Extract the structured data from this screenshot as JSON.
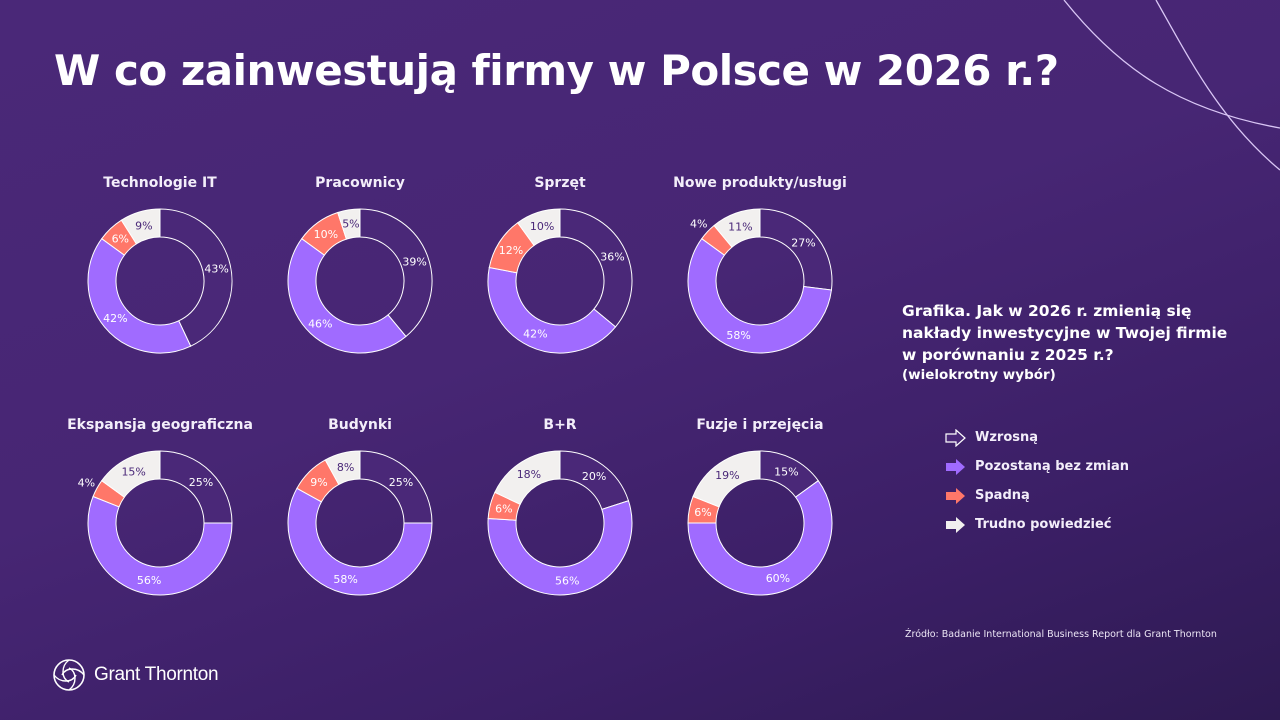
{
  "title": "W co zainwestują firmy w Polsce w 2026 r.?",
  "colors": {
    "background": "#472674",
    "wzrosna": "#4a2878",
    "pozostana": "#a06bff",
    "spadna": "#ff7769",
    "trudno": "#f2f0ef",
    "outline": "#ffffff"
  },
  "legend": {
    "items": [
      {
        "label": "Wzrosną",
        "color": "#4a2878",
        "icon": "arrow-outline-icon"
      },
      {
        "label": "Pozostaną bez zmian",
        "color": "#a06bff",
        "icon": "arrow-icon"
      },
      {
        "label": "Spadną",
        "color": "#ff7769",
        "icon": "arrow-icon"
      },
      {
        "label": "Trudno powiedzieć",
        "color": "#f2f0ef",
        "icon": "arrow-icon"
      }
    ]
  },
  "question": {
    "text": "Grafika. Jak w 2026 r. zmienią się nakłady inwestycyjne w Twojej firmie w porównaniu z 2025 r.?",
    "note": "(wielokrotny wybór)"
  },
  "source": "Źródło: Badanie International Business Report dla Grant Thornton",
  "logo": {
    "text": "Grant Thornton"
  },
  "chart_data": {
    "type": "pie",
    "subtype": "donut",
    "title": "W co zainwestują firmy w Polsce w 2026 r.?",
    "legend_position": "right",
    "series_names": [
      "Wzrosną",
      "Pozostaną bez zmian",
      "Spadną",
      "Trudno powiedzieć"
    ],
    "unit": "%",
    "charts": [
      {
        "title": "Technologie IT",
        "values": [
          43,
          42,
          6,
          9
        ],
        "labels": [
          "43%",
          "42%",
          "6%",
          "9%"
        ]
      },
      {
        "title": "Pracownicy",
        "values": [
          39,
          46,
          10,
          5
        ],
        "labels": [
          "39%",
          "46%",
          "10%",
          "5%"
        ]
      },
      {
        "title": "Sprzęt",
        "values": [
          36,
          42,
          12,
          10
        ],
        "labels": [
          "36%",
          "42%",
          "12%",
          "10%"
        ]
      },
      {
        "title": "Nowe produkty/usługi",
        "values": [
          27,
          58,
          4,
          11
        ],
        "labels": [
          "27%",
          "58%",
          "4%",
          "11%"
        ]
      },
      {
        "title": "Ekspansja geograficzna",
        "values": [
          25,
          56,
          4,
          15
        ],
        "labels": [
          "25%",
          "56%",
          "4%",
          "15%"
        ]
      },
      {
        "title": "Budynki",
        "values": [
          25,
          58,
          9,
          8
        ],
        "labels": [
          "25%",
          "58%",
          "9%",
          "8%"
        ]
      },
      {
        "title": "B+R",
        "values": [
          20,
          56,
          6,
          18
        ],
        "labels": [
          "20%",
          "56%",
          "6%",
          "18%"
        ]
      },
      {
        "title": "Fuzje i przejęcia",
        "values": [
          15,
          60,
          6,
          19
        ],
        "labels": [
          "15%",
          "60%",
          "6%",
          "19%"
        ]
      }
    ]
  }
}
